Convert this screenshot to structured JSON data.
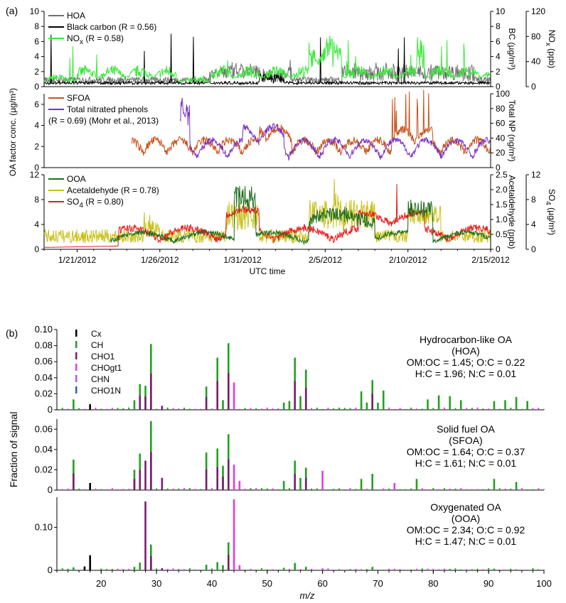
{
  "panel_labels": {
    "a": "(a)",
    "b": "(b)"
  },
  "colors": {
    "HOA": "#707070",
    "BC": "#000000",
    "NOx": "#3ee83e",
    "SFOA": "#c8501a",
    "NP": "#7a2fc4",
    "OOA": "#1f6e1f",
    "Acetaldehyde": "#c9c11a",
    "SO4": "#e81c1c",
    "Cx": "#000000",
    "CH": "#22a022",
    "CHO1": "#7b1d6e",
    "CHOgt1": "#e23ee0",
    "CHN": "#b25ad6",
    "CHO1N": "#2a66b0"
  },
  "chart_data": [
    {
      "id": "hoa-panel",
      "type": "line",
      "legend": [
        {
          "key": "HOA",
          "label": "HOA"
        },
        {
          "key": "BC",
          "label": "Black carbon (R = 0.56)"
        },
        {
          "key": "NOx",
          "label_main": "NO",
          "label_sub": "x",
          "label_rest": " (R = 0.58)"
        }
      ],
      "ylim": [
        0,
        10
      ],
      "left_ticks": [
        "0",
        "2",
        "4",
        "6",
        "8",
        "10"
      ],
      "right_axes": [
        {
          "label": "BC (µg/m³)",
          "ticks": [
            "0",
            "2",
            "4",
            "6",
            "8",
            "10"
          ]
        },
        {
          "label_main": "NO",
          "label_sub": "x",
          "label_rest": " (ppb)",
          "ticks": [
            "0",
            "40",
            "80",
            "120"
          ]
        }
      ]
    },
    {
      "id": "sfoa-panel",
      "type": "line",
      "legend": [
        {
          "key": "SFOA",
          "label": "SFOA"
        },
        {
          "key": "NP",
          "label": "Total nitrated phenols"
        },
        {
          "key": "none",
          "label": "(R = 0.69) (Mohr et al., 2013)"
        }
      ],
      "ylim": [
        0,
        7
      ],
      "left_ticks": [
        "0",
        "2",
        "4",
        "6"
      ],
      "right_axes": [
        {
          "label": "Total NP (ng/m³)",
          "ticks": [
            "0",
            "20",
            "40",
            "60",
            "80",
            "100"
          ]
        }
      ]
    },
    {
      "id": "ooa-panel",
      "type": "line",
      "legend": [
        {
          "key": "OOA",
          "label": "OOA"
        },
        {
          "key": "Acetaldehyde",
          "label": "Acetaldehyde (R = 0.78)"
        },
        {
          "key": "SO4",
          "label_main": "SO",
          "label_sub": "4",
          "label_rest": " (R = 0.80)"
        }
      ],
      "ylim": [
        0,
        12
      ],
      "left_ticks": [
        "0",
        "4",
        "8",
        "12"
      ],
      "right_axes": [
        {
          "label": "Acetaldehyde (ppb)",
          "ticks": [
            "0",
            "0.5",
            "1.0",
            "1.5",
            "2.0",
            "2.5"
          ]
        },
        {
          "label_main": "SO",
          "label_sub": "4",
          "label_rest": " (µg/m³)",
          "ticks": [
            "0",
            "4",
            "8",
            "12"
          ]
        }
      ]
    },
    {
      "id": "spectrum-hoa",
      "type": "bar",
      "title_lines": [
        "Hydrocarbon-like OA",
        "(HOA)",
        "OM:OC = 1.45; O:C = 0.22",
        "H:C = 1.96; N:C = 0.01"
      ],
      "ylim": [
        0,
        0.1
      ],
      "ticks": [
        "0",
        "0.02",
        "0.04",
        "0.06",
        "0.08",
        "0.10"
      ],
      "peaks": [
        [
          15,
          0.013,
          "CH"
        ],
        [
          18,
          0.007,
          "Cx"
        ],
        [
          26,
          0.012,
          "CH"
        ],
        [
          27,
          0.032,
          "CH"
        ],
        [
          28,
          0.03,
          "CH"
        ],
        [
          29,
          0.082,
          "CH"
        ],
        [
          31,
          0.005,
          "CHO1"
        ],
        [
          39,
          0.029,
          "CH"
        ],
        [
          41,
          0.065,
          "CH"
        ],
        [
          42,
          0.012,
          "CH"
        ],
        [
          43,
          0.083,
          "CH"
        ],
        [
          44,
          0.034,
          "CHOgt1"
        ],
        [
          53,
          0.009,
          "CH"
        ],
        [
          54,
          0.011,
          "CH"
        ],
        [
          55,
          0.065,
          "CH"
        ],
        [
          56,
          0.017,
          "CH"
        ],
        [
          57,
          0.05,
          "CH"
        ],
        [
          67,
          0.023,
          "CH"
        ],
        [
          68,
          0.009,
          "CH"
        ],
        [
          69,
          0.037,
          "CH"
        ],
        [
          70,
          0.009,
          "CH"
        ],
        [
          71,
          0.024,
          "CH"
        ],
        [
          79,
          0.013,
          "CH"
        ],
        [
          81,
          0.018,
          "CH"
        ],
        [
          83,
          0.017,
          "CH"
        ],
        [
          85,
          0.012,
          "CH"
        ],
        [
          91,
          0.011,
          "CH"
        ],
        [
          93,
          0.012,
          "CH"
        ],
        [
          95,
          0.016,
          "CH"
        ],
        [
          97,
          0.011,
          "CH"
        ]
      ]
    },
    {
      "id": "spectrum-sfoa",
      "type": "bar",
      "title_lines": [
        "Solid fuel OA",
        "(SFOA)",
        "OM:OC = 1.64; O:C = 0.37",
        "H:C = 1.61; N:C = 0.01"
      ],
      "ylim": [
        0,
        0.07
      ],
      "ticks": [
        "0",
        "0.02",
        "0.04",
        "0.06"
      ],
      "peaks": [
        [
          15,
          0.03,
          "CH"
        ],
        [
          18,
          0.007,
          "Cx"
        ],
        [
          26,
          0.02,
          "CH"
        ],
        [
          27,
          0.036,
          "CH"
        ],
        [
          28,
          0.029,
          "CHO1"
        ],
        [
          29,
          0.068,
          "CH"
        ],
        [
          31,
          0.012,
          "CHO1"
        ],
        [
          39,
          0.037,
          "CH"
        ],
        [
          41,
          0.041,
          "CH"
        ],
        [
          42,
          0.024,
          "CH"
        ],
        [
          43,
          0.055,
          "CH"
        ],
        [
          44,
          0.025,
          "CHOgt1"
        ],
        [
          45,
          0.009,
          "CHOgt1"
        ],
        [
          53,
          0.009,
          "CH"
        ],
        [
          55,
          0.029,
          "CH"
        ],
        [
          56,
          0.012,
          "CH"
        ],
        [
          57,
          0.022,
          "CH"
        ],
        [
          60,
          0.019,
          "CHOgt1"
        ],
        [
          67,
          0.011,
          "CH"
        ],
        [
          69,
          0.016,
          "CH"
        ],
        [
          73,
          0.007,
          "CHOgt1"
        ],
        [
          77,
          0.011,
          "CH"
        ],
        [
          91,
          0.011,
          "CH"
        ],
        [
          95,
          0.008,
          "CH"
        ]
      ]
    },
    {
      "id": "spectrum-ooa",
      "type": "bar",
      "title_lines": [
        "Oxygenated OA",
        "(OOA)",
        "OM:OC = 2.34; O:C = 0.92",
        "H:C = 1.47; N:C = 0.01"
      ],
      "ylim": [
        0,
        0.17
      ],
      "ticks": [
        "0",
        "0.10"
      ],
      "peaks": [
        [
          15,
          0.007,
          "CH"
        ],
        [
          17,
          0.009,
          "Cx"
        ],
        [
          18,
          0.035,
          "Cx"
        ],
        [
          26,
          0.008,
          "CH"
        ],
        [
          27,
          0.018,
          "CH"
        ],
        [
          28,
          0.16,
          "CHO1"
        ],
        [
          29,
          0.06,
          "CH"
        ],
        [
          31,
          0.005,
          "CHO1"
        ],
        [
          39,
          0.013,
          "CH"
        ],
        [
          41,
          0.019,
          "CH"
        ],
        [
          42,
          0.012,
          "CH"
        ],
        [
          43,
          0.065,
          "CH"
        ],
        [
          44,
          0.165,
          "CHOgt1"
        ],
        [
          45,
          0.012,
          "CHOgt1"
        ],
        [
          53,
          0.006,
          "CH"
        ],
        [
          55,
          0.017,
          "CH"
        ],
        [
          57,
          0.008,
          "CH"
        ],
        [
          60,
          0.004,
          "CHOgt1"
        ],
        [
          69,
          0.008,
          "CH"
        ],
        [
          91,
          0.004,
          "CH"
        ]
      ]
    }
  ],
  "axes": {
    "left_a": "OA factor conc. (µg/m³)",
    "time_ticks": [
      "1/21/2012",
      "1/26/2012",
      "1/31/2012",
      "2/5/2012",
      "2/10/2012",
      "2/15/2012"
    ],
    "time_label": "UTC time",
    "mz_label": "m/z",
    "mz_ticks": [
      "20",
      "30",
      "40",
      "50",
      "60",
      "70",
      "80",
      "90",
      "100"
    ],
    "left_b": "Fraction of signal",
    "spectrum_legend": [
      "Cx",
      "CH",
      "CHO1",
      "CHOgt1",
      "CHN",
      "CHO1N"
    ]
  }
}
